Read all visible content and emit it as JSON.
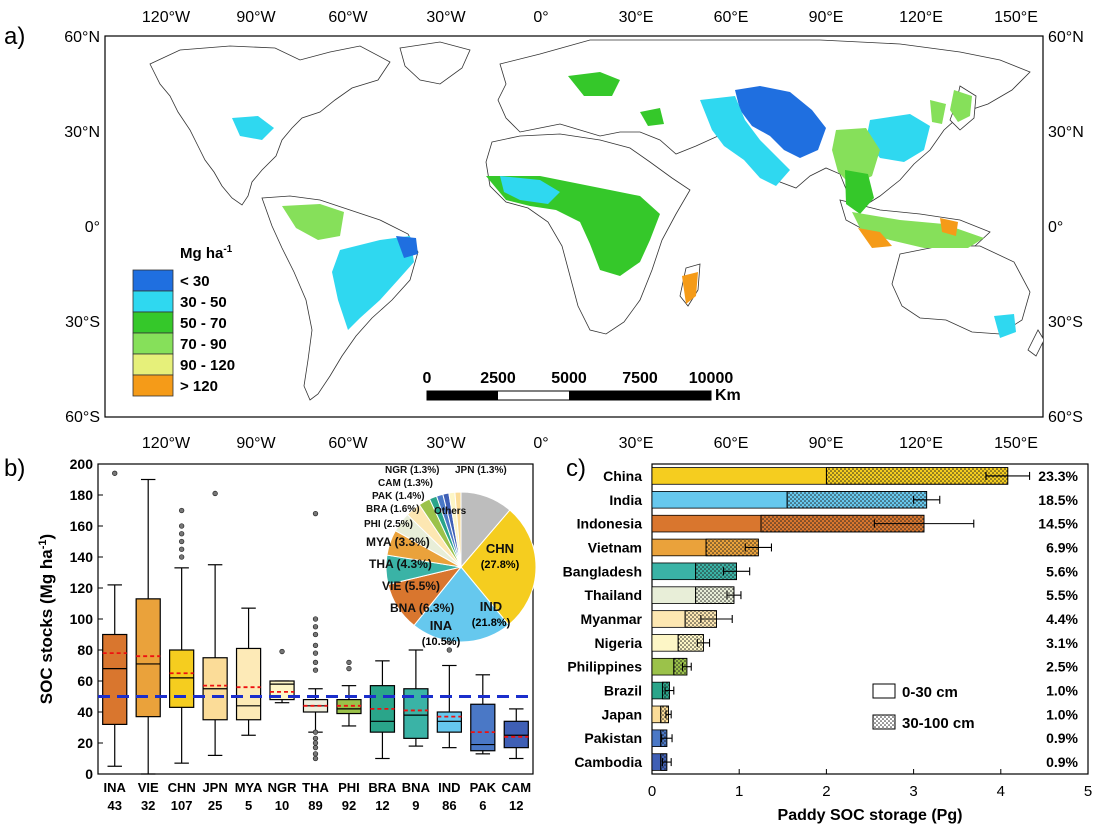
{
  "panels": {
    "a_label": "a)",
    "b_label": "b)",
    "c_label": "c)"
  },
  "map": {
    "top_ticks": [
      "120°W",
      "90°W",
      "60°W",
      "30°W",
      "0°",
      "30°E",
      "60°E",
      "90°E",
      "120°E",
      "150°E"
    ],
    "left_ticks": [
      "60°N",
      "30°N",
      "0°",
      "30°S",
      "60°S"
    ],
    "legend_title": "Mg ha",
    "legend_title_sup": "-1",
    "legend_items": [
      {
        "label": "< 30",
        "color": "#1f6fe0"
      },
      {
        "label": "30 - 50",
        "color": "#2fd8f0"
      },
      {
        "label": "50 - 70",
        "color": "#35c82a"
      },
      {
        "label": "70 - 90",
        "color": "#86e05a"
      },
      {
        "label": "90 - 120",
        "color": "#e6f07a"
      },
      {
        "label": "> 120",
        "color": "#f59b18"
      }
    ],
    "scale_ticks": [
      "0",
      "2500",
      "5000",
      "7500",
      "10000"
    ],
    "scale_unit": "Km"
  },
  "chart_data": [
    {
      "type": "box",
      "panel": "b",
      "ylabel": "SOC stocks (Mg ha",
      "ylabel_sup": "-1",
      "ylabel_tail": ")",
      "ylim": [
        0,
        200
      ],
      "yticks": [
        0,
        20,
        40,
        60,
        80,
        100,
        120,
        140,
        160,
        180,
        200
      ],
      "reference_line": 50,
      "categories": [
        "INA",
        "VIE",
        "CHN",
        "JPN",
        "MYA",
        "NGR",
        "THA",
        "PHI",
        "BRA",
        "BNA",
        "IND",
        "PAK",
        "CAM"
      ],
      "counts": [
        "43",
        "32",
        "107",
        "25",
        "5",
        "10",
        "89",
        "92",
        "12",
        "9",
        "86",
        "6",
        "12"
      ],
      "boxes": [
        {
          "name": "INA",
          "color": "#d9762e",
          "min": 5,
          "q1": 32,
          "median": 68,
          "q3": 90,
          "max": 122,
          "mean": 78,
          "outliers": [
            194
          ]
        },
        {
          "name": "VIE",
          "color": "#eaa23b",
          "min": 0,
          "q1": 37,
          "median": 71,
          "q3": 113,
          "max": 190,
          "mean": 76,
          "outliers": []
        },
        {
          "name": "CHN",
          "color": "#f5cd1f",
          "min": 7,
          "q1": 43,
          "median": 62,
          "q3": 80,
          "max": 133,
          "mean": 65,
          "outliers": [
            140,
            145,
            150,
            155,
            160,
            170
          ]
        },
        {
          "name": "JPN",
          "color": "#fbdc98",
          "min": 12,
          "q1": 35,
          "median": 55,
          "q3": 75,
          "max": 135,
          "mean": 57,
          "outliers": [
            181
          ]
        },
        {
          "name": "MYA",
          "color": "#fdeab7",
          "min": 25,
          "q1": 35,
          "median": 44,
          "q3": 81,
          "max": 107,
          "mean": 56,
          "outliers": []
        },
        {
          "name": "NGR",
          "color": "#fdf6c6",
          "min": 46,
          "q1": 48,
          "median": 58,
          "q3": 60,
          "max": 60,
          "mean": 53,
          "outliers": [
            79
          ]
        },
        {
          "name": "THA",
          "color": "#eeeedd",
          "min": 27,
          "q1": 40,
          "median": 44,
          "q3": 48,
          "max": 55,
          "mean": 44,
          "outliers": [
            10,
            13,
            17,
            20,
            23,
            27,
            67,
            72,
            78,
            83,
            90,
            95,
            100,
            168
          ]
        },
        {
          "name": "PHI",
          "color": "#9bc24a",
          "min": 31,
          "q1": 39,
          "median": 42,
          "q3": 48,
          "max": 57,
          "mean": 44,
          "outliers": [
            68,
            72
          ]
        },
        {
          "name": "BRA",
          "color": "#2aa58a",
          "min": 10,
          "q1": 27,
          "median": 34,
          "q3": 57,
          "max": 73,
          "mean": 42,
          "outliers": []
        },
        {
          "name": "BNA",
          "color": "#3ab3a6",
          "min": 18,
          "q1": 23,
          "median": 38,
          "q3": 55,
          "max": 80,
          "mean": 41,
          "outliers": []
        },
        {
          "name": "IND",
          "color": "#66c8ee",
          "min": 17,
          "q1": 27,
          "median": 34,
          "q3": 40,
          "max": 70,
          "mean": 37,
          "outliers": [
            80,
            85,
            91
          ]
        },
        {
          "name": "PAK",
          "color": "#4a78c6",
          "min": 13,
          "q1": 15,
          "median": 19,
          "q3": 45,
          "max": 64,
          "mean": 27,
          "outliers": []
        },
        {
          "name": "CAM",
          "color": "#3f5fb5",
          "min": 10,
          "q1": 17,
          "median": 25,
          "q3": 34,
          "max": 42,
          "mean": 24,
          "outliers": []
        }
      ]
    },
    {
      "type": "pie",
      "panel": "b-inset",
      "slices": [
        {
          "label": "CHN",
          "pct_label": "(27.8%)",
          "value": 27.8,
          "color": "#f5cd1f"
        },
        {
          "label": "IND",
          "pct_label": "(21.8%)",
          "value": 21.8,
          "color": "#66c8ee"
        },
        {
          "label": "INA",
          "pct_label": "(10.5%)",
          "value": 10.5,
          "color": "#d9762e"
        },
        {
          "label": "BNA (6.3%)",
          "value": 6.3,
          "color": "#3ab3a6"
        },
        {
          "label": "VIE (5.5%)",
          "value": 5.5,
          "color": "#eaa23b"
        },
        {
          "label": "THA (4.3%)",
          "value": 4.3,
          "color": "#e8eed8"
        },
        {
          "label": "MYA (3.3%)",
          "value": 3.3,
          "color": "#fde7b2"
        },
        {
          "label": "PHI (2.5%)",
          "value": 2.5,
          "color": "#9bc24a"
        },
        {
          "label": "BRA (1.6%)",
          "value": 1.6,
          "color": "#2aa58a"
        },
        {
          "label": "PAK (1.4%)",
          "value": 1.4,
          "color": "#4a78c6"
        },
        {
          "label": "CAM (1.3%)",
          "value": 1.3,
          "color": "#3f5fb5"
        },
        {
          "label": "NGR (1.3%)",
          "value": 1.3,
          "color": "#fdf6c6"
        },
        {
          "label": "JPN (1.3%)",
          "value": 1.3,
          "color": "#fbdc98"
        },
        {
          "label": "Others",
          "value": 11.3,
          "color": "#bdbdbd"
        }
      ]
    },
    {
      "type": "bar",
      "panel": "c",
      "orientation": "horizontal",
      "xlabel": "Paddy SOC storage (Pg)",
      "xlim": [
        0,
        5
      ],
      "xticks": [
        0,
        1,
        2,
        3,
        4,
        5
      ],
      "categories": [
        "China",
        "India",
        "Indonesia",
        "Vietnam",
        "Bangladesh",
        "Thailand",
        "Myanmar",
        "Nigeria",
        "Philippines",
        "Brazil",
        "Japan",
        "Pakistan",
        "Cambodia"
      ],
      "series": [
        {
          "name": "0-30 cm",
          "values": [
            2.0,
            1.55,
            1.25,
            0.62,
            0.5,
            0.5,
            0.38,
            0.3,
            0.25,
            0.12,
            0.1,
            0.1,
            0.1
          ]
        },
        {
          "name": "30-100 cm",
          "values": [
            2.08,
            1.6,
            1.87,
            0.6,
            0.47,
            0.44,
            0.36,
            0.29,
            0.15,
            0.08,
            0.09,
            0.07,
            0.07
          ]
        }
      ],
      "errors": [
        0.25,
        0.15,
        0.57,
        0.15,
        0.15,
        0.08,
        0.18,
        0.07,
        0.05,
        0.05,
        0.03,
        0.06,
        0.05
      ],
      "colors": [
        "#f5cd1f",
        "#66c8ee",
        "#d9762e",
        "#eaa23b",
        "#3ab3a6",
        "#e8eed8",
        "#fde7b2",
        "#fdf6c6",
        "#9bc24a",
        "#2aa58a",
        "#fbdc98",
        "#4a78c6",
        "#3f5fb5"
      ],
      "percent_labels": [
        "23.3%",
        "18.5%",
        "14.5%",
        "6.9%",
        "5.6%",
        "5.5%",
        "4.4%",
        "3.1%",
        "2.5%",
        "1.0%",
        "1.0%",
        "0.9%",
        "0.9%"
      ]
    }
  ]
}
